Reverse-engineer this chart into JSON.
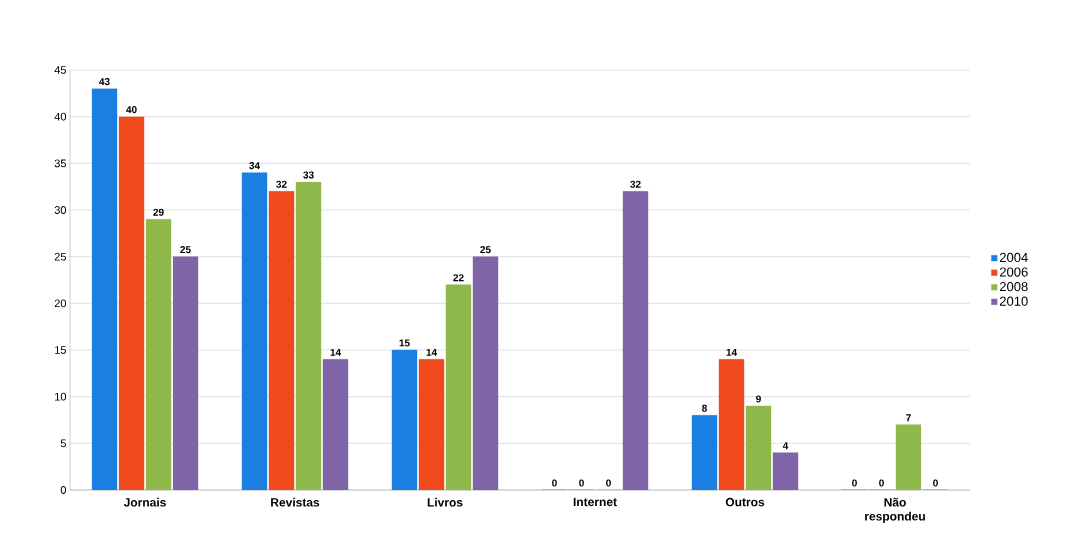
{
  "chart_data": {
    "type": "bar",
    "categories": [
      "Jornais",
      "Revistas",
      "Livros",
      "Internet",
      "Outros",
      "Não respondeu"
    ],
    "series": [
      {
        "name": "2004",
        "color": "#1a7fe0",
        "values": [
          43,
          34,
          15,
          0,
          8,
          0
        ]
      },
      {
        "name": "2006",
        "color": "#f04a1c",
        "values": [
          40,
          32,
          14,
          0,
          14,
          0
        ]
      },
      {
        "name": "2008",
        "color": "#8fb84a",
        "values": [
          29,
          33,
          22,
          0,
          9,
          7
        ]
      },
      {
        "name": "2010",
        "color": "#7f65a8",
        "values": [
          25,
          14,
          25,
          32,
          4,
          0
        ]
      }
    ],
    "ylim": [
      0,
      45
    ],
    "yticks": [
      0,
      5,
      10,
      15,
      20,
      25,
      30,
      35,
      40,
      45
    ],
    "grid": "y",
    "legend": "right",
    "data_labels": true
  }
}
